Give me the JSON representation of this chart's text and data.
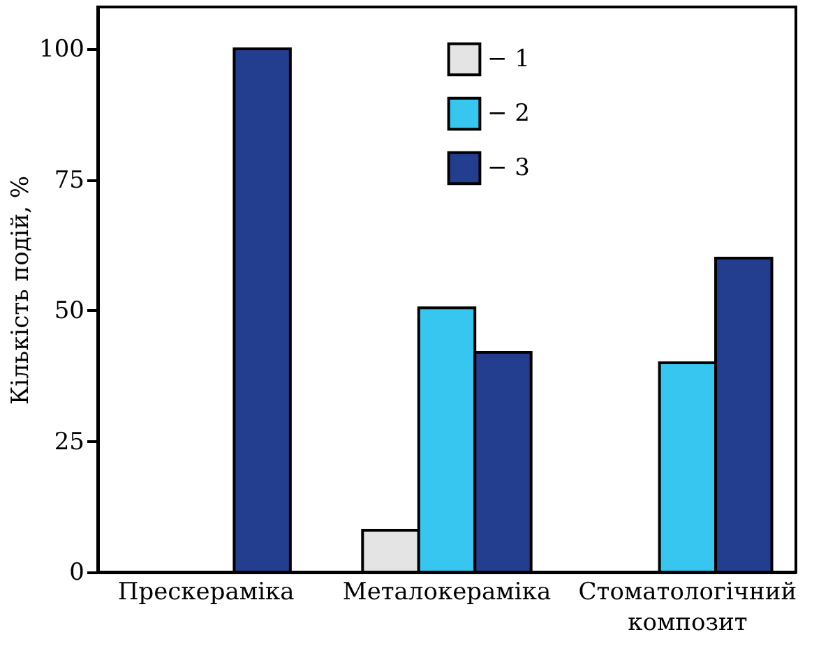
{
  "chart_data": {
    "type": "bar",
    "ylabel": "Кількість подій, %",
    "categories": [
      "Прескераміка",
      "Металокераміка",
      "Стоматологічний композит"
    ],
    "series": [
      {
        "name": "− 1",
        "color": "#e4e4e4",
        "values": [
          null,
          8,
          null
        ]
      },
      {
        "name": "− 2",
        "color": "#36c6f0",
        "values": [
          null,
          50.5,
          40
        ]
      },
      {
        "name": "− 3",
        "color": "#243e8f",
        "values": [
          100,
          42,
          60
        ]
      }
    ],
    "ylim": [
      0,
      108
    ],
    "yticks": [
      0,
      25,
      50,
      75,
      100
    ],
    "grid": false,
    "legend": "top"
  }
}
